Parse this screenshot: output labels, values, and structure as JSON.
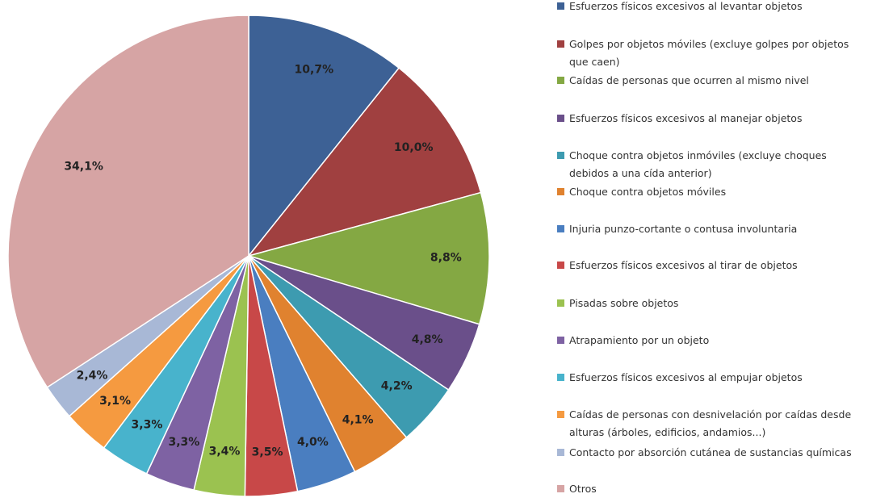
{
  "chart_data": {
    "type": "pie",
    "categories": [
      "Esfuerzos físicos excesivos al levantar objetos",
      "Golpes por objetos móviles (excluye golpes por objetos que caen)",
      "Caídas de personas que ocurren al mismo nivel",
      "Esfuerzos físicos excesivos al manejar objetos",
      "Choque contra  objetos inmóviles (excluye choques debidos a una cída anterior)",
      "Choque contra objetos móviles",
      "Injuria punzo-cortante o contusa involuntaria",
      "Esfuerzos físicos excesivos al tirar de objetos",
      "Pisadas sobre objetos",
      "Atrapamiento por un objeto",
      "Esfuerzos físicos excesivos al empujar objetos",
      "Caídas de personas con desnivelación por caídas desde alturas (árboles, edificios, andamios...)",
      "Contacto por absorción cutánea de sustancias químicas",
      "Otros"
    ],
    "values": [
      10.7,
      10.0,
      8.8,
      4.8,
      4.2,
      4.1,
      4.0,
      3.5,
      3.4,
      3.3,
      3.3,
      3.1,
      2.4,
      34.1
    ],
    "value_labels": [
      "10,7%",
      "10,0%",
      "8,8%",
      "4,8%",
      "4,2%",
      "4,1%",
      "4,0%",
      "3,5%",
      "3,4%",
      "3,3%",
      "3,3%",
      "3,1%",
      "2,4%",
      "34,1%"
    ],
    "colors": [
      "#3d6195",
      "#a04040",
      "#84a843",
      "#6a4f8a",
      "#3d9bb0",
      "#e0822f",
      "#4a7ec0",
      "#c84848",
      "#9bc250",
      "#7e62a3",
      "#48b3cc",
      "#f59a40",
      "#a8b8d6",
      "#d6a4a4"
    ],
    "legend": "right"
  }
}
